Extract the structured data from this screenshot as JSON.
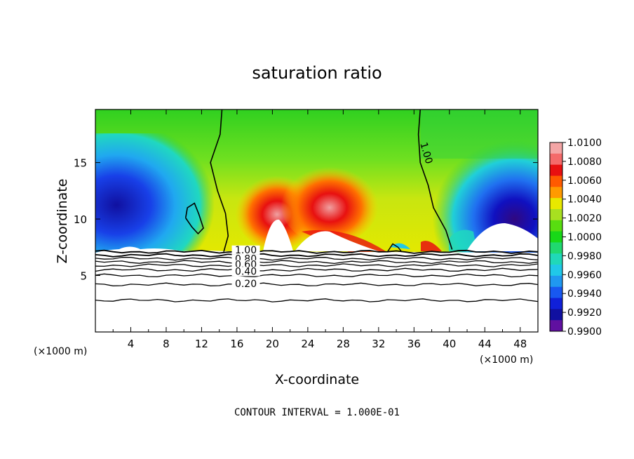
{
  "chart_data": {
    "type": "heatmap",
    "title": "saturation ratio",
    "xlabel": "X-coordinate",
    "ylabel": "Z-coordinate",
    "x_unit": "(×1000 m)",
    "x_unit_right": "(×1000 m)",
    "x_ticks": [
      4,
      8,
      12,
      16,
      20,
      24,
      28,
      32,
      36,
      40,
      44,
      48
    ],
    "y_ticks": [
      5,
      10,
      15
    ],
    "xlim": [
      0,
      50
    ],
    "ylim": [
      0,
      19.7
    ],
    "colorbar": {
      "ticks": [
        "1.0100",
        "1.0080",
        "1.0060",
        "1.0040",
        "1.0020",
        "1.0000",
        "0.9980",
        "0.9960",
        "0.9940",
        "0.9920",
        "0.9900"
      ],
      "range": [
        0.99,
        1.01
      ],
      "colors": [
        "#f4a6a6",
        "#f46a6a",
        "#e81010",
        "#ff5a00",
        "#ff9a00",
        "#e8e800",
        "#a8e020",
        "#58dd10",
        "#18d818",
        "#20d870",
        "#20d8b8",
        "#20c8e8",
        "#2098f0",
        "#1858f0",
        "#1020d8",
        "#1010a0",
        "#6010a0"
      ]
    },
    "contour_labels": [
      "1.00",
      "1.00",
      "0.80",
      "0.60",
      "0.40",
      "0.20"
    ],
    "contour_interval_text": "CONTOUR INTERVAL = 1.000E-01",
    "contours": {
      "line_1_00_left": [
        [
          14.3,
          19.7
        ],
        [
          14.1,
          17.5
        ],
        [
          13.0,
          15.0
        ],
        [
          13.8,
          12.5
        ],
        [
          14.7,
          10.5
        ],
        [
          15.0,
          8.5
        ],
        [
          14.5,
          7.1
        ]
      ],
      "small_loop": [
        [
          10.2,
          10.1
        ],
        [
          10.4,
          11.0
        ],
        [
          11.2,
          11.4
        ],
        [
          11.7,
          10.4
        ],
        [
          12.2,
          9.2
        ],
        [
          11.6,
          8.7
        ],
        [
          10.9,
          9.3
        ],
        [
          10.2,
          10.1
        ]
      ],
      "line_1_00_right": [
        [
          36.7,
          19.7
        ],
        [
          36.5,
          17.5
        ],
        [
          36.7,
          15.0
        ],
        [
          37.6,
          13.0
        ],
        [
          38.2,
          11.0
        ],
        [
          39.6,
          9.0
        ],
        [
          40.3,
          7.3
        ]
      ],
      "small_bump": [
        [
          33.0,
          7.1
        ],
        [
          33.6,
          7.8
        ],
        [
          34.2,
          7.5
        ],
        [
          34.6,
          7.1
        ]
      ],
      "low_levels_z": [
        7.1,
        6.8,
        6.5,
        6.2,
        5.9,
        5.5,
        5.0,
        4.2,
        2.8
      ]
    }
  }
}
